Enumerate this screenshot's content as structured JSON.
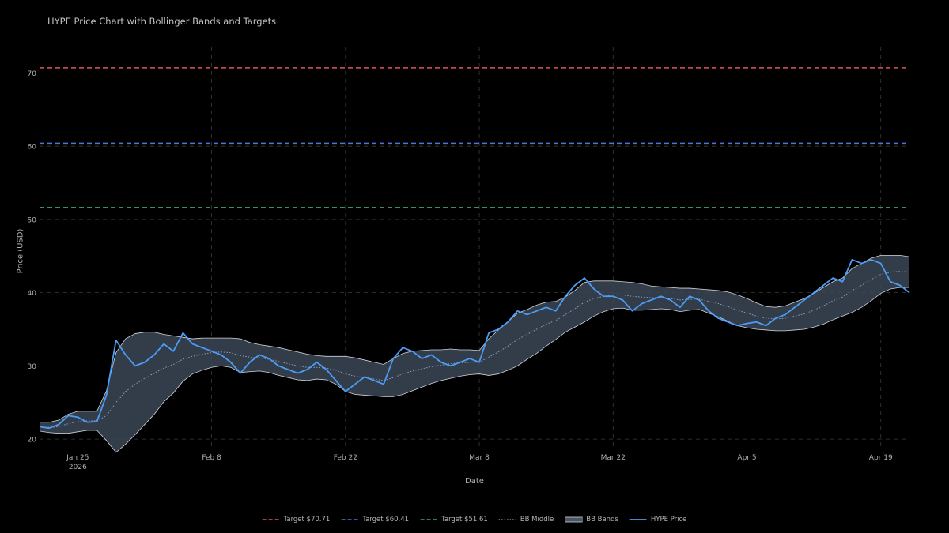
{
  "chart_data": {
    "type": "line",
    "title": "HYPE Price Chart with Bollinger Bands and Targets",
    "xlabel": "Date",
    "ylabel": "Price (USD)",
    "ylim": [
      18.5,
      73.5
    ],
    "xlim": [
      "2026-01-21",
      "2026-04-22"
    ],
    "y_ticks": [
      20,
      30,
      40,
      50,
      60,
      70
    ],
    "x_ticks": [
      {
        "date": "2026-01-25",
        "label": "Jan 25",
        "sublabel": "2026"
      },
      {
        "date": "2026-02-08",
        "label": "Feb 8",
        "sublabel": ""
      },
      {
        "date": "2026-02-22",
        "label": "Feb 22",
        "sublabel": ""
      },
      {
        "date": "2026-03-08",
        "label": "Mar 8",
        "sublabel": ""
      },
      {
        "date": "2026-03-22",
        "label": "Mar 22",
        "sublabel": ""
      },
      {
        "date": "2026-04-05",
        "label": "Apr 5",
        "sublabel": ""
      },
      {
        "date": "2026-04-19",
        "label": "Apr 19",
        "sublabel": ""
      }
    ],
    "grid": true,
    "legend_position": "bottom-center",
    "targets": [
      {
        "name": "Target $70.71",
        "value": 70.71,
        "color": "#e05555"
      },
      {
        "name": "Target $60.41",
        "value": 60.41,
        "color": "#4a78d8"
      },
      {
        "name": "Target $51.61",
        "value": 51.61,
        "color": "#3fa86a"
      }
    ],
    "series": [
      {
        "name": "HYPE Price",
        "color": "#4b9cf5",
        "x": [
          "2026-01-21",
          "2026-01-22",
          "2026-01-23",
          "2026-01-24",
          "2026-01-25",
          "2026-01-26",
          "2026-01-27",
          "2026-01-28",
          "2026-01-29",
          "2026-01-30",
          "2026-01-31",
          "2026-02-01",
          "2026-02-02",
          "2026-02-03",
          "2026-02-04",
          "2026-02-05",
          "2026-02-06",
          "2026-02-07",
          "2026-02-08",
          "2026-02-09",
          "2026-02-10",
          "2026-02-11",
          "2026-02-12",
          "2026-02-13",
          "2026-02-14",
          "2026-02-15",
          "2026-02-16",
          "2026-02-17",
          "2026-02-18",
          "2026-02-19",
          "2026-02-20",
          "2026-02-21",
          "2026-02-22",
          "2026-02-23",
          "2026-02-24",
          "2026-02-25",
          "2026-02-26",
          "2026-02-27",
          "2026-02-28",
          "2026-03-01",
          "2026-03-02",
          "2026-03-03",
          "2026-03-04",
          "2026-03-05",
          "2026-03-06",
          "2026-03-07",
          "2026-03-08",
          "2026-03-09",
          "2026-03-10",
          "2026-03-11",
          "2026-03-12",
          "2026-03-13",
          "2026-03-14",
          "2026-03-15",
          "2026-03-16",
          "2026-03-17",
          "2026-03-18",
          "2026-03-19",
          "2026-03-20",
          "2026-03-21",
          "2026-03-22",
          "2026-03-23",
          "2026-03-24",
          "2026-03-25",
          "2026-03-26",
          "2026-03-27",
          "2026-03-28",
          "2026-03-29",
          "2026-03-30",
          "2026-03-31",
          "2026-04-01",
          "2026-04-02",
          "2026-04-03",
          "2026-04-04",
          "2026-04-05",
          "2026-04-06",
          "2026-04-07",
          "2026-04-08",
          "2026-04-09",
          "2026-04-10",
          "2026-04-11",
          "2026-04-12",
          "2026-04-13",
          "2026-04-14",
          "2026-04-15",
          "2026-04-16",
          "2026-04-17",
          "2026-04-18",
          "2026-04-19",
          "2026-04-20",
          "2026-04-21",
          "2026-04-22"
        ],
        "values": [
          21.7,
          21.5,
          22.0,
          23.2,
          23.0,
          22.3,
          22.4,
          26.0,
          33.5,
          31.5,
          30.0,
          30.5,
          31.5,
          33.0,
          32.0,
          34.5,
          33.0,
          32.5,
          32.0,
          31.5,
          30.5,
          29.0,
          30.5,
          31.5,
          31.0,
          30.0,
          29.5,
          29.0,
          29.5,
          30.5,
          29.5,
          28.0,
          26.5,
          27.5,
          28.5,
          28.0,
          27.5,
          31.0,
          32.5,
          32.0,
          31.0,
          31.5,
          30.5,
          30.0,
          30.5,
          31.0,
          30.5,
          34.5,
          35.0,
          36.0,
          37.5,
          37.0,
          37.5,
          38.0,
          37.5,
          39.5,
          41.0,
          42.0,
          40.5,
          39.5,
          39.5,
          39.0,
          37.5,
          38.5,
          39.0,
          39.5,
          39.0,
          38.0,
          39.5,
          39.0,
          37.5,
          36.5,
          36.0,
          35.5,
          35.8,
          36.0,
          35.5,
          36.5,
          37.0,
          38.0,
          39.0,
          40.0,
          41.0,
          42.0,
          41.5,
          44.5,
          44.0,
          44.5,
          44.0,
          41.5,
          41.0,
          40.0
        ]
      },
      {
        "name": "BB Middle",
        "color": "#8a9fc4",
        "values": [
          21.7,
          21.6,
          21.7,
          22.1,
          22.4,
          22.5,
          22.5,
          23.2,
          25.0,
          26.5,
          27.5,
          28.3,
          29.0,
          29.7,
          30.2,
          30.9,
          31.3,
          31.6,
          31.8,
          31.9,
          31.8,
          31.4,
          31.2,
          31.1,
          30.9,
          30.6,
          30.3,
          30.0,
          29.8,
          29.8,
          29.7,
          29.4,
          28.9,
          28.6,
          28.4,
          28.2,
          28.0,
          28.4,
          28.9,
          29.3,
          29.6,
          29.9,
          30.1,
          30.3,
          30.4,
          30.5,
          30.5,
          31.2,
          31.9,
          32.7,
          33.6,
          34.3,
          35.0,
          35.7,
          36.2,
          37.0,
          37.8,
          38.7,
          39.2,
          39.5,
          39.7,
          39.7,
          39.5,
          39.4,
          39.3,
          39.3,
          39.2,
          39.0,
          39.1,
          39.1,
          38.8,
          38.5,
          38.1,
          37.6,
          37.2,
          36.8,
          36.5,
          36.4,
          36.5,
          36.8,
          37.1,
          37.6,
          38.2,
          38.9,
          39.4,
          40.3,
          41.0,
          41.8,
          42.5,
          42.8,
          42.9,
          42.8
        ]
      },
      {
        "name": "BB Bands",
        "color": "#cfd4dc",
        "band_width": [
          0.6,
          0.7,
          0.9,
          1.3,
          1.4,
          1.3,
          1.3,
          3.4,
          6.8,
          7.2,
          6.9,
          6.3,
          5.6,
          4.6,
          3.9,
          3.0,
          2.4,
          2.2,
          2.0,
          1.9,
          2.0,
          2.3,
          2.0,
          1.8,
          1.8,
          1.9,
          1.9,
          1.9,
          1.8,
          1.6,
          1.6,
          1.9,
          2.4,
          2.5,
          2.4,
          2.3,
          2.2,
          2.6,
          2.8,
          2.7,
          2.5,
          2.3,
          2.1,
          2.0,
          1.8,
          1.7,
          1.6,
          2.5,
          3.0,
          3.3,
          3.6,
          3.4,
          3.3,
          3.0,
          2.6,
          2.4,
          2.5,
          2.7,
          2.4,
          2.1,
          1.9,
          1.8,
          1.9,
          1.8,
          1.6,
          1.5,
          1.5,
          1.6,
          1.5,
          1.4,
          1.6,
          1.8,
          2.0,
          2.1,
          2.0,
          1.8,
          1.6,
          1.6,
          1.7,
          1.9,
          2.1,
          2.3,
          2.5,
          2.6,
          2.6,
          3.0,
          3.0,
          2.9,
          2.6,
          2.3,
          2.2,
          2.1
        ]
      }
    ]
  }
}
